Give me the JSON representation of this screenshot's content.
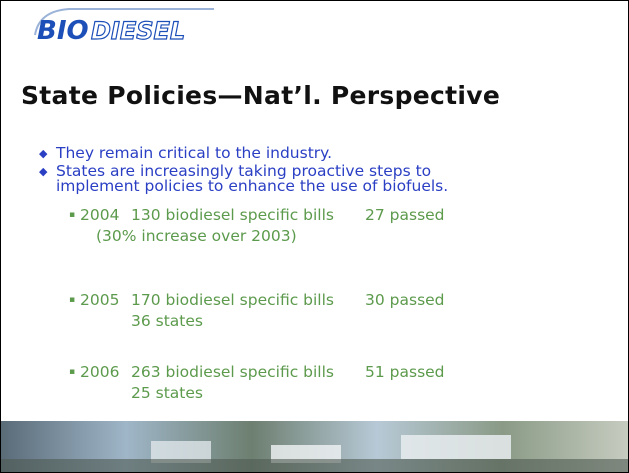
{
  "logo": {
    "part1": "BIO",
    "part2": "DIESEL"
  },
  "title": "State Policies—Nat’l. Perspective",
  "bullets": [
    "They remain critical to the industry.",
    "States are increasingly taking proactive steps to",
    "implement policies to enhance the use of biofuels."
  ],
  "items": [
    {
      "year": "2004",
      "bills": "130 biodiesel specific bills",
      "passed": "27 passed",
      "note": "(30% increase over 2003)"
    },
    {
      "year": "2005",
      "bills": "170 biodiesel specific bills",
      "passed": "30 passed",
      "note": "36 states"
    },
    {
      "year": "2006",
      "bills": "263 biodiesel specific bills",
      "passed": "51 passed",
      "note": "25 states"
    }
  ]
}
